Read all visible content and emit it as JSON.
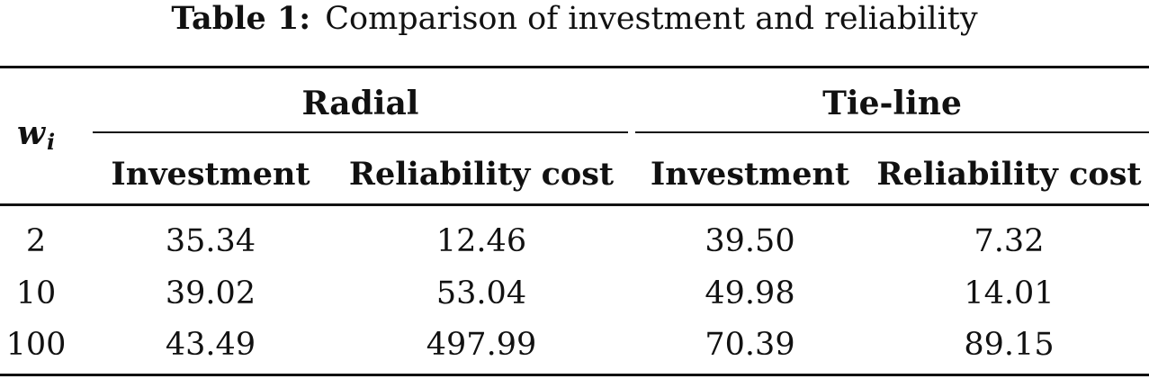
{
  "caption": {
    "label": "Table 1:",
    "text": "Comparison of investment and reliability"
  },
  "table": {
    "row_header": {
      "symbol": "w",
      "subscript": "i"
    },
    "groups": {
      "radial": "Radial",
      "tieline": "Tie-line"
    },
    "subheaders": {
      "radial_investment": "Investment",
      "radial_reliability": "Reliability cost",
      "tieline_investment": "Investment",
      "tieline_reliability": "Reliability cost"
    },
    "rows": [
      {
        "wi": "2",
        "radial_investment": "35.34",
        "radial_reliability": "12.46",
        "tieline_investment": "39.50",
        "tieline_reliability": "7.32"
      },
      {
        "wi": "10",
        "radial_investment": "39.02",
        "radial_reliability": "53.04",
        "tieline_investment": "49.98",
        "tieline_reliability": "14.01"
      },
      {
        "wi": "100",
        "radial_investment": "43.49",
        "radial_reliability": "497.99",
        "tieline_investment": "70.39",
        "tieline_reliability": "89.15"
      }
    ]
  }
}
